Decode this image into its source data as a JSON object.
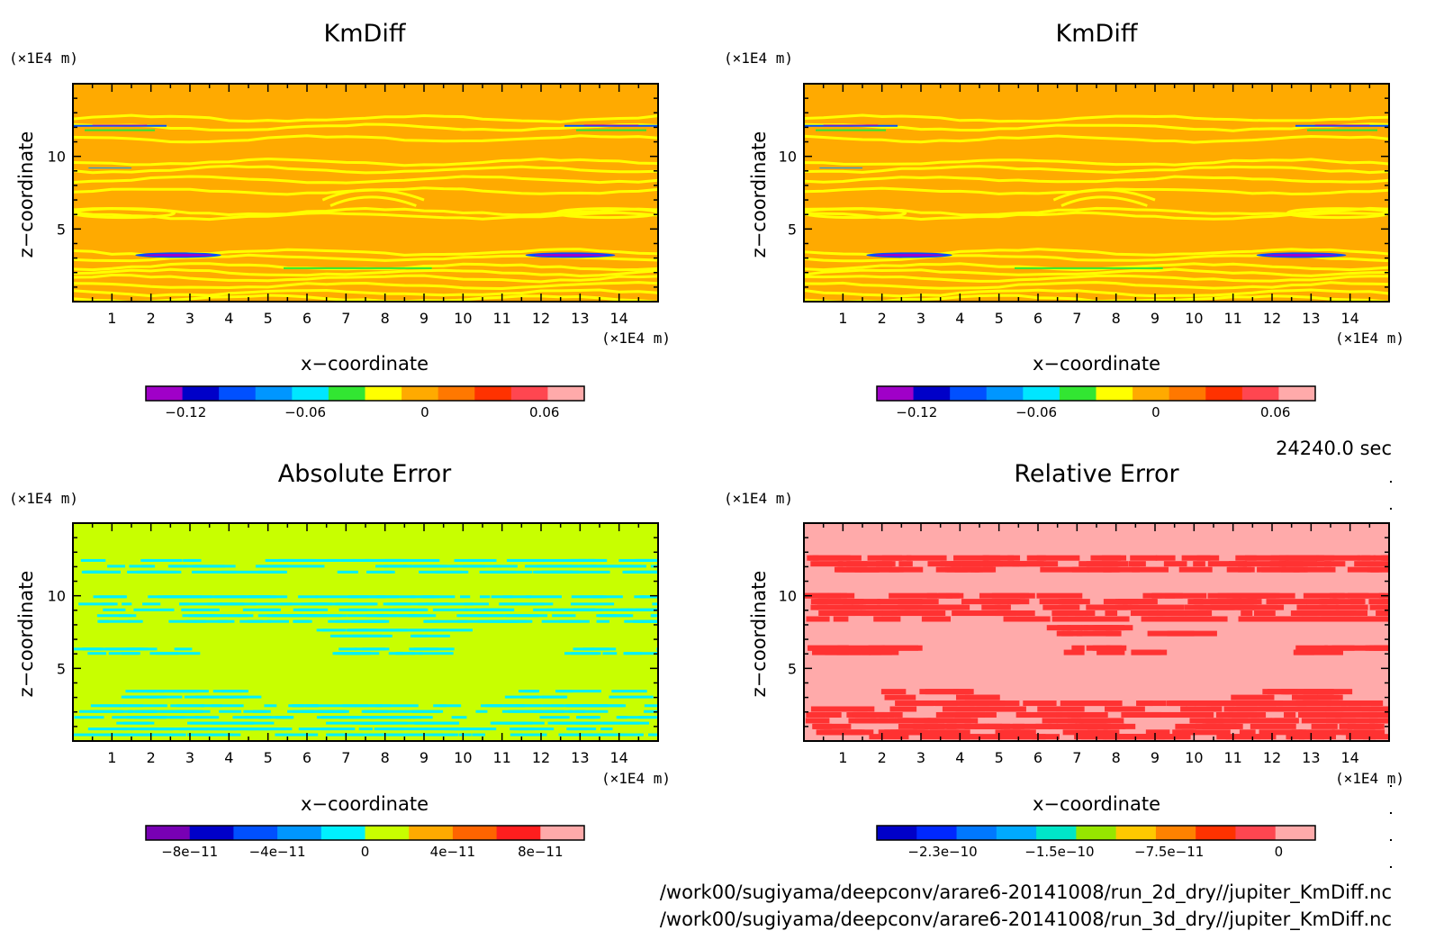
{
  "time_label": "24240.0 sec",
  "file_paths": [
    "/work00/sugiyama/deepconv/arare6-20141008/run_2d_dry//jupiter_KmDiff.nc",
    "/work00/sugiyama/deepconv/arare6-20141008/run_3d_dry//jupiter_KmDiff.nc"
  ],
  "chart_data": [
    {
      "type": "heatmap",
      "title": "KmDiff",
      "xlabel": "x−coordinate",
      "ylabel": "z−coordinate",
      "x_unit": "(×1E4 m)",
      "y_unit": "(×1E4 m)",
      "xlim": [
        0,
        15
      ],
      "ylim": [
        0,
        15
      ],
      "x_ticks": [
        "1",
        "2",
        "3",
        "4",
        "5",
        "6",
        "7",
        "8",
        "9",
        "10",
        "11",
        "12",
        "13",
        "14"
      ],
      "y_ticks": [
        "5",
        "10"
      ],
      "pattern": "km",
      "colorbar": {
        "colors": [
          "#a000c8",
          "#0000c8",
          "#0050ff",
          "#0096ff",
          "#00e6ff",
          "#32e632",
          "#ffff00",
          "#ffaa00",
          "#ff7800",
          "#ff3200",
          "#ff4650",
          "#ffaaaa"
        ],
        "tick_labels": [
          "−0.12",
          "−0.06",
          "0",
          "0.06"
        ],
        "tick_values": [
          -0.12,
          -0.06,
          0,
          0.06
        ],
        "range": [
          -0.14,
          0.08
        ]
      }
    },
    {
      "type": "heatmap",
      "title": "KmDiff",
      "xlabel": "x−coordinate",
      "ylabel": "z−coordinate",
      "x_unit": "(×1E4 m)",
      "y_unit": "(×1E4 m)",
      "xlim": [
        0,
        15
      ],
      "ylim": [
        0,
        15
      ],
      "x_ticks": [
        "1",
        "2",
        "3",
        "4",
        "5",
        "6",
        "7",
        "8",
        "9",
        "10",
        "11",
        "12",
        "13",
        "14"
      ],
      "y_ticks": [
        "5",
        "10"
      ],
      "pattern": "km",
      "colorbar": {
        "colors": [
          "#a000c8",
          "#0000c8",
          "#0050ff",
          "#0096ff",
          "#00e6ff",
          "#32e632",
          "#ffff00",
          "#ffaa00",
          "#ff7800",
          "#ff3200",
          "#ff4650",
          "#ffaaaa"
        ],
        "tick_labels": [
          "−0.12",
          "−0.06",
          "0",
          "0.06"
        ],
        "tick_values": [
          -0.12,
          -0.06,
          0,
          0.06
        ],
        "range": [
          -0.14,
          0.08
        ]
      }
    },
    {
      "type": "heatmap",
      "title": "Absolute Error",
      "xlabel": "x−coordinate",
      "ylabel": "z−coordinate",
      "x_unit": "(×1E4 m)",
      "y_unit": "(×1E4 m)",
      "xlim": [
        0,
        15
      ],
      "ylim": [
        0,
        15
      ],
      "x_ticks": [
        "1",
        "2",
        "3",
        "4",
        "5",
        "6",
        "7",
        "8",
        "9",
        "10",
        "11",
        "12",
        "13",
        "14"
      ],
      "y_ticks": [
        "5",
        "10"
      ],
      "pattern": "abs",
      "colorbar": {
        "colors": [
          "#7800b4",
          "#0000c8",
          "#0050ff",
          "#0096ff",
          "#00f0ff",
          "#c8ff00",
          "#ffaa00",
          "#ff6400",
          "#ff1e1e",
          "#ffaaaa"
        ],
        "tick_labels": [
          "−8e−11",
          "−4e−11",
          "0",
          "4e−11",
          "8e−11"
        ],
        "tick_values": [
          -8e-11,
          -4e-11,
          0,
          4e-11,
          8e-11
        ],
        "range": [
          -1e-10,
          1e-10
        ]
      }
    },
    {
      "type": "heatmap",
      "title": "Relative Error",
      "xlabel": "x−coordinate",
      "ylabel": "z−coordinate",
      "x_unit": "(×1E4 m)",
      "y_unit": "(×1E4 m)",
      "xlim": [
        0,
        15
      ],
      "ylim": [
        0,
        15
      ],
      "x_ticks": [
        "1",
        "2",
        "3",
        "4",
        "5",
        "6",
        "7",
        "8",
        "9",
        "10",
        "11",
        "12",
        "13",
        "14"
      ],
      "y_ticks": [
        "5",
        "10"
      ],
      "pattern": "rel",
      "colorbar": {
        "colors": [
          "#0000c8",
          "#0028ff",
          "#0078ff",
          "#00aaff",
          "#00e6c8",
          "#96e600",
          "#ffc800",
          "#ff8200",
          "#ff3200",
          "#ff4650",
          "#ffaaaa"
        ],
        "tick_labels": [
          "−2.3e−10",
          "−1.5e−10",
          "−7.5e−11",
          "0"
        ],
        "tick_values": [
          -2.3e-10,
          -1.5e-10,
          -7.5e-11,
          0
        ],
        "range": [
          -2.75e-10,
          2.5e-11
        ]
      }
    }
  ]
}
